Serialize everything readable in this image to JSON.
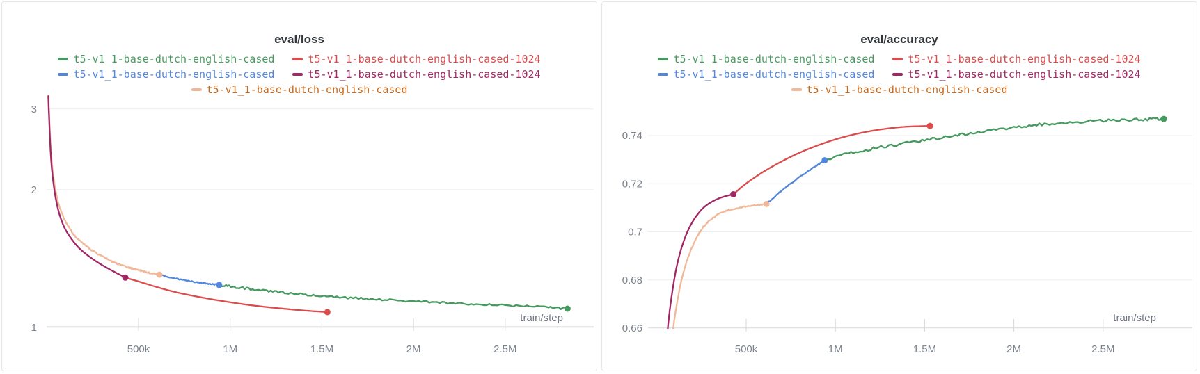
{
  "colors": {
    "green": "#479A5F",
    "red": "#DA4C4C",
    "blue": "#5387DD",
    "maroon": "#A12864",
    "peach": "#F0B899",
    "peach_text": "#C5681E",
    "grid": "#ebedef",
    "axis": "#d9dbde",
    "tick": "#d3d6da",
    "title_text": "#33383d",
    "tick_text": "#7b828c"
  },
  "chart_data": [
    {
      "type": "line",
      "title": "eval/loss",
      "x_axis_label": "train/step",
      "x_ticks": [
        {
          "label": "500k",
          "step": 500000
        },
        {
          "label": "1M",
          "step": 1000000
        },
        {
          "label": "1.5M",
          "step": 1500000
        },
        {
          "label": "2M",
          "step": 2000000
        },
        {
          "label": "2.5M",
          "step": 2500000
        }
      ],
      "y_scale": "log",
      "y_ticks": [
        {
          "label": "3",
          "value": 3
        },
        {
          "label": "2",
          "value": 2
        },
        {
          "label": "1",
          "value": 1
        }
      ],
      "x_domain": [
        0,
        2900000
      ],
      "grid": true,
      "legend_position": "top",
      "legend_rows": [
        [
          {
            "label": "t5-v1_1-base-dutch-english-cased",
            "color": "#479A5F",
            "text_color": "#479A5F"
          },
          {
            "label": "t5-v1_1-base-dutch-english-cased-1024",
            "color": "#DA4C4C",
            "text_color": "#DA4C4C"
          }
        ],
        [
          {
            "label": "t5-v1_1-base-dutch-english-cased",
            "color": "#5387DD",
            "text_color": "#5387DD"
          },
          {
            "label": "t5-v1_1-base-dutch-english-cased-1024",
            "color": "#A12864",
            "text_color": "#A12864"
          }
        ],
        [
          {
            "label": "t5-v1_1-base-dutch-english-cased",
            "color": "#F0B899",
            "text_color": "#C5681E"
          }
        ]
      ],
      "series": [
        {
          "name": "t5-v1_1-base-dutch-english-cased",
          "segment": "peach",
          "color": "#F0B899",
          "noise": 1.1,
          "endpoint_dot": true,
          "points": [
            [
              8000,
              3.25
            ],
            [
              12000,
              2.95
            ],
            [
              18000,
              2.6
            ],
            [
              25000,
              2.35
            ],
            [
              35000,
              2.15
            ],
            [
              50000,
              1.97
            ],
            [
              70000,
              1.83
            ],
            [
              100000,
              1.71
            ],
            [
              140000,
              1.61
            ],
            [
              180000,
              1.545
            ],
            [
              230000,
              1.49
            ],
            [
              280000,
              1.445
            ],
            [
              330000,
              1.41
            ],
            [
              380000,
              1.38
            ],
            [
              430000,
              1.357
            ],
            [
              480000,
              1.34
            ],
            [
              530000,
              1.325
            ],
            [
              580000,
              1.312
            ],
            [
              614000,
              1.304
            ]
          ]
        },
        {
          "name": "t5-v1_1-base-dutch-english-cased-1024",
          "segment": "maroon",
          "color": "#A12864",
          "noise": 0,
          "endpoint_dot": true,
          "points": [
            [
              8000,
              3.2
            ],
            [
              12000,
              2.88
            ],
            [
              18000,
              2.53
            ],
            [
              25000,
              2.28
            ],
            [
              35000,
              2.08
            ],
            [
              50000,
              1.9
            ],
            [
              70000,
              1.76
            ],
            [
              100000,
              1.64
            ],
            [
              140000,
              1.55
            ],
            [
              180000,
              1.485
            ],
            [
              230000,
              1.43
            ],
            [
              280000,
              1.385
            ],
            [
              330000,
              1.348
            ],
            [
              380000,
              1.315
            ],
            [
              428000,
              1.285
            ]
          ]
        },
        {
          "name": "t5-v1_1-base-dutch-english-cased-1024",
          "segment": "red",
          "color": "#DA4C4C",
          "noise": 0,
          "endpoint_dot": true,
          "points": [
            [
              428000,
              1.285
            ],
            [
              500000,
              1.26
            ],
            [
              600000,
              1.225
            ],
            [
              700000,
              1.195
            ],
            [
              800000,
              1.172
            ],
            [
              900000,
              1.152
            ],
            [
              1000000,
              1.135
            ],
            [
              1100000,
              1.12
            ],
            [
              1200000,
              1.108
            ],
            [
              1300000,
              1.098
            ],
            [
              1400000,
              1.089
            ],
            [
              1530000,
              1.08
            ]
          ]
        },
        {
          "name": "t5-v1_1-base-dutch-english-cased",
          "segment": "blue",
          "color": "#5387DD",
          "noise": 0.7,
          "endpoint_dot": true,
          "points": [
            [
              614000,
              1.304
            ],
            [
              680000,
              1.285
            ],
            [
              750000,
              1.268
            ],
            [
              820000,
              1.255
            ],
            [
              880000,
              1.246
            ],
            [
              940000,
              1.238
            ]
          ]
        },
        {
          "name": "t5-v1_1-base-dutch-english-cased",
          "segment": "green",
          "color": "#479A5F",
          "noise": 1.5,
          "endpoint_dot": true,
          "points": [
            [
              940000,
              1.238
            ],
            [
              1050000,
              1.222
            ],
            [
              1200000,
              1.202
            ],
            [
              1350000,
              1.186
            ],
            [
              1500000,
              1.172
            ],
            [
              1700000,
              1.158
            ],
            [
              1900000,
              1.146
            ],
            [
              2100000,
              1.135
            ],
            [
              2300000,
              1.126
            ],
            [
              2500000,
              1.117
            ],
            [
              2700000,
              1.108
            ],
            [
              2840000,
              1.099
            ]
          ]
        }
      ]
    },
    {
      "type": "line",
      "title": "eval/accuracy",
      "x_axis_label": "train/step",
      "x_ticks": [
        {
          "label": "500k",
          "step": 500000
        },
        {
          "label": "1M",
          "step": 1000000
        },
        {
          "label": "1.5M",
          "step": 1500000
        },
        {
          "label": "2M",
          "step": 2000000
        },
        {
          "label": "2.5M",
          "step": 2500000
        }
      ],
      "y_scale": "linear",
      "y_ticks": [
        {
          "label": "0.74",
          "value": 0.74
        },
        {
          "label": "0.72",
          "value": 0.72
        },
        {
          "label": "0.7",
          "value": 0.7
        },
        {
          "label": "0.68",
          "value": 0.68
        },
        {
          "label": "0.66",
          "value": 0.66
        }
      ],
      "x_domain": [
        0,
        2900000
      ],
      "y_domain": [
        0.66,
        0.75
      ],
      "grid": true,
      "legend_position": "top",
      "legend_rows": [
        [
          {
            "label": "t5-v1_1-base-dutch-english-cased",
            "color": "#479A5F",
            "text_color": "#479A5F"
          },
          {
            "label": "t5-v1_1-base-dutch-english-cased-1024",
            "color": "#DA4C4C",
            "text_color": "#DA4C4C"
          }
        ],
        [
          {
            "label": "t5-v1_1-base-dutch-english-cased",
            "color": "#5387DD",
            "text_color": "#5387DD"
          },
          {
            "label": "t5-v1_1-base-dutch-english-cased-1024",
            "color": "#A12864",
            "text_color": "#A12864"
          }
        ],
        [
          {
            "label": "t5-v1_1-base-dutch-english-cased",
            "color": "#F0B899",
            "text_color": "#C5681E"
          }
        ]
      ],
      "series": [
        {
          "name": "t5-v1_1-base-dutch-english-cased",
          "segment": "peach",
          "color": "#F0B899",
          "noise": 1.2,
          "endpoint_dot": true,
          "points": [
            [
              70000,
              0.645
            ],
            [
              95000,
              0.662
            ],
            [
              125000,
              0.6755
            ],
            [
              160000,
              0.686
            ],
            [
              200000,
              0.694
            ],
            [
              245000,
              0.7005
            ],
            [
              300000,
              0.705
            ],
            [
              370000,
              0.7082
            ],
            [
              460000,
              0.71
            ],
            [
              540000,
              0.7109
            ],
            [
              614000,
              0.7116
            ]
          ]
        },
        {
          "name": "t5-v1_1-base-dutch-english-cased-1024",
          "segment": "maroon",
          "color": "#A12864",
          "noise": 0,
          "endpoint_dot": true,
          "points": [
            [
              45000,
              0.645
            ],
            [
              65000,
              0.663
            ],
            [
              90000,
              0.677
            ],
            [
              115000,
              0.687
            ],
            [
              145000,
              0.695
            ],
            [
              180000,
              0.7015
            ],
            [
              220000,
              0.7065
            ],
            [
              265000,
              0.7103
            ],
            [
              315000,
              0.7128
            ],
            [
              370000,
              0.7145
            ],
            [
              428000,
              0.7156
            ]
          ]
        },
        {
          "name": "t5-v1_1-base-dutch-english-cased-1024",
          "segment": "red",
          "color": "#DA4C4C",
          "noise": 0,
          "endpoint_dot": true,
          "points": [
            [
              428000,
              0.7156
            ],
            [
              500000,
              0.7201
            ],
            [
              600000,
              0.7251
            ],
            [
              700000,
              0.7293
            ],
            [
              800000,
              0.7329
            ],
            [
              900000,
              0.7359
            ],
            [
              1000000,
              0.7384
            ],
            [
              1100000,
              0.7404
            ],
            [
              1200000,
              0.7419
            ],
            [
              1300000,
              0.743
            ],
            [
              1400000,
              0.7437
            ],
            [
              1530000,
              0.744
            ]
          ]
        },
        {
          "name": "t5-v1_1-base-dutch-english-cased",
          "segment": "blue",
          "color": "#5387DD",
          "noise": 0.8,
          "endpoint_dot": true,
          "points": [
            [
              614000,
              0.7116
            ],
            [
              700000,
              0.7172
            ],
            [
              790000,
              0.7222
            ],
            [
              870000,
              0.7263
            ],
            [
              940000,
              0.7297
            ]
          ]
        },
        {
          "name": "t5-v1_1-base-dutch-english-cased",
          "segment": "green",
          "color": "#479A5F",
          "noise": 2.0,
          "endpoint_dot": true,
          "points": [
            [
              940000,
              0.7297
            ],
            [
              1100000,
              0.733
            ],
            [
              1300000,
              0.7357
            ],
            [
              1500000,
              0.738
            ],
            [
              1700000,
              0.7404
            ],
            [
              1900000,
              0.7425
            ],
            [
              2100000,
              0.7442
            ],
            [
              2300000,
              0.7455
            ],
            [
              2500000,
              0.7462
            ],
            [
              2700000,
              0.7467
            ],
            [
              2840000,
              0.7469
            ]
          ]
        }
      ]
    }
  ]
}
